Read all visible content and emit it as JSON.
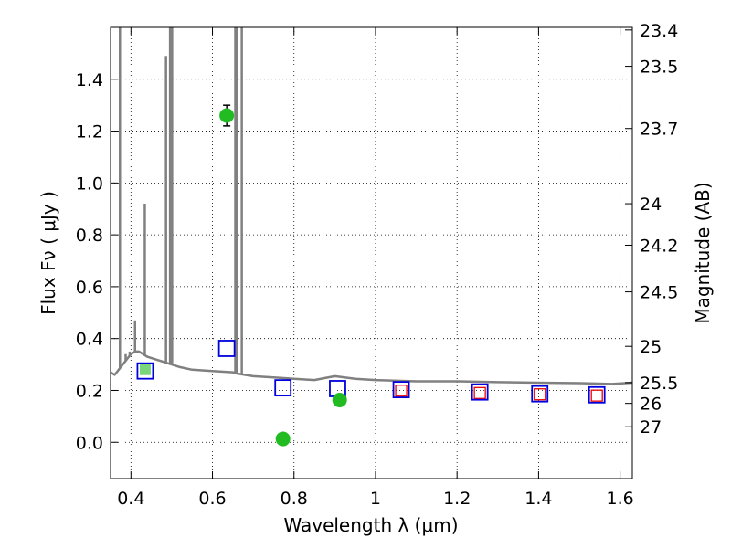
{
  "chart_data": {
    "type": "scatter",
    "xlabel": "Wavelength  λ (μm)",
    "ylabel": "Flux  Fν  ( μJy )",
    "ylabel_right": "Magnitude (AB)",
    "xlim": [
      0.35,
      1.63
    ],
    "ylim": [
      -0.14,
      1.6
    ],
    "grid": true,
    "x_ticks": [
      0.4,
      0.6,
      0.8,
      1.0,
      1.2,
      1.4,
      1.6
    ],
    "x_tick_labels": [
      "0.4",
      "0.6",
      "0.8",
      "1",
      "1.2",
      "1.4",
      "1.6"
    ],
    "y_ticks": [
      0.0,
      0.2,
      0.4,
      0.6,
      0.8,
      1.0,
      1.2,
      1.4
    ],
    "y_tick_labels": [
      "0.0",
      "0.2",
      "0.4",
      "0.6",
      "0.8",
      "1.0",
      "1.2",
      "1.4"
    ],
    "right_ticks": [
      {
        "flux": 1.59,
        "label": "23.4"
      },
      {
        "flux": 1.45,
        "label": "23.5"
      },
      {
        "flux": 1.21,
        "label": "23.7"
      },
      {
        "flux": 0.92,
        "label": "24"
      },
      {
        "flux": 0.76,
        "label": "24.2"
      },
      {
        "flux": 0.58,
        "label": "24.5"
      },
      {
        "flux": 0.37,
        "label": "25"
      },
      {
        "flux": 0.23,
        "label": "25.5"
      },
      {
        "flux": 0.15,
        "label": "26"
      },
      {
        "flux": 0.06,
        "label": "27"
      }
    ],
    "series": [
      {
        "kind": "model-spectrum",
        "color": "#808080",
        "continuum": [
          [
            0.35,
            0.27
          ],
          [
            0.36,
            0.26
          ],
          [
            0.37,
            0.28
          ],
          [
            0.38,
            0.3
          ],
          [
            0.39,
            0.32
          ],
          [
            0.4,
            0.34
          ],
          [
            0.41,
            0.35
          ],
          [
            0.42,
            0.35
          ],
          [
            0.44,
            0.33
          ],
          [
            0.46,
            0.32
          ],
          [
            0.48,
            0.31
          ],
          [
            0.5,
            0.3
          ],
          [
            0.52,
            0.29
          ],
          [
            0.55,
            0.28
          ],
          [
            0.6,
            0.275
          ],
          [
            0.65,
            0.27
          ],
          [
            0.66,
            0.265
          ],
          [
            0.7,
            0.255
          ],
          [
            0.75,
            0.25
          ],
          [
            0.8,
            0.245
          ],
          [
            0.85,
            0.24
          ],
          [
            0.9,
            0.255
          ],
          [
            0.95,
            0.245
          ],
          [
            1.0,
            0.24
          ],
          [
            1.1,
            0.235
          ],
          [
            1.2,
            0.235
          ],
          [
            1.3,
            0.232
          ],
          [
            1.4,
            0.23
          ],
          [
            1.5,
            0.228
          ],
          [
            1.58,
            0.225
          ],
          [
            1.63,
            0.23
          ]
        ],
        "emission_lines": [
          {
            "x": 0.373,
            "peak": 1.6
          },
          {
            "x": 0.387,
            "peak": 0.34
          },
          {
            "x": 0.397,
            "peak": 0.35
          },
          {
            "x": 0.41,
            "peak": 0.47
          },
          {
            "x": 0.434,
            "peak": 0.92
          },
          {
            "x": 0.486,
            "peak": 1.49
          },
          {
            "x": 0.496,
            "peak": 1.6
          },
          {
            "x": 0.501,
            "peak": 1.6
          },
          {
            "x": 0.656,
            "peak": 1.6
          },
          {
            "x": 0.659,
            "peak": 1.6
          },
          {
            "x": 0.672,
            "peak": 1.6
          }
        ]
      },
      {
        "kind": "observed-photometry",
        "color": "#22bb22",
        "points": [
          {
            "x": 0.435,
            "y": 0.28,
            "err": 0.0
          },
          {
            "x": 0.635,
            "y": 1.26,
            "err": 0.04
          },
          {
            "x": 0.773,
            "y": 0.013,
            "err": 0.012
          },
          {
            "x": 0.912,
            "y": 0.163,
            "err": 0.02
          }
        ]
      },
      {
        "kind": "model-photometry-blue",
        "color": "#0000dd",
        "points": [
          {
            "x": 0.435,
            "y": 0.275
          },
          {
            "x": 0.635,
            "y": 0.362
          },
          {
            "x": 0.773,
            "y": 0.21
          },
          {
            "x": 0.907,
            "y": 0.207
          },
          {
            "x": 1.063,
            "y": 0.203
          },
          {
            "x": 1.256,
            "y": 0.194
          },
          {
            "x": 1.403,
            "y": 0.187
          },
          {
            "x": 1.543,
            "y": 0.183
          }
        ]
      },
      {
        "kind": "model-photometry-red",
        "color": "#ee0000",
        "points": [
          {
            "x": 1.063,
            "y": 0.199
          },
          {
            "x": 1.256,
            "y": 0.19
          },
          {
            "x": 1.403,
            "y": 0.185
          },
          {
            "x": 1.543,
            "y": 0.18
          }
        ]
      }
    ]
  }
}
